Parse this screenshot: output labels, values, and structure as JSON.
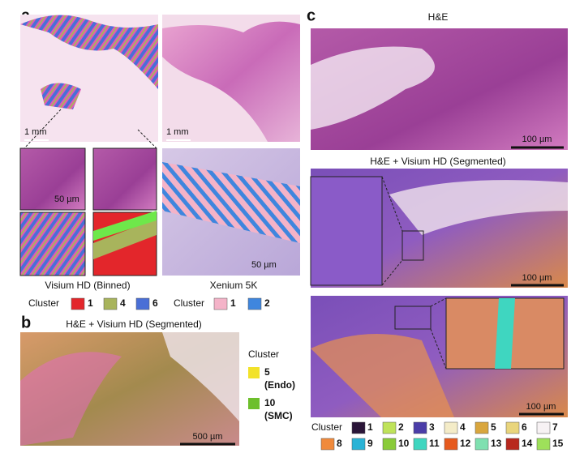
{
  "panel_a": {
    "label": "a",
    "scale_top_left": "1 mm",
    "scale_top_right": "1 mm",
    "scale_visium_inset": "50 µm",
    "scale_xenium": "50 µm",
    "visium_caption": "Visium HD (Binned)",
    "xenium_caption": "Xenium 5K",
    "visium_legend": {
      "title": "Cluster",
      "items": [
        {
          "label": "1",
          "color": "#e3262b"
        },
        {
          "label": "4",
          "color": "#a8b45c"
        },
        {
          "label": "6",
          "color": "#4a6fd6"
        }
      ]
    },
    "xenium_legend": {
      "title": "Cluster",
      "items": [
        {
          "label": "1",
          "color": "#f4b3c8"
        },
        {
          "label": "2",
          "color": "#3f86de"
        }
      ]
    }
  },
  "panel_b": {
    "label": "b",
    "title": "H&E + Visium HD (Segmented)",
    "scale": "500 µm",
    "legend": {
      "title": "Cluster",
      "items": [
        {
          "label": "5",
          "sublabel": "(Endo)",
          "color": "#f2e22a"
        },
        {
          "label": "10",
          "sublabel": "(SMC)",
          "color": "#6dbf2c"
        }
      ]
    }
  },
  "panel_c": {
    "label": "c",
    "title_top": "H&E",
    "scale_top": "100 µm",
    "title_middle": "H&E + Visium HD (Segmented)",
    "scale_middle": "100 µm",
    "scale_bottom": "100 µm",
    "legend": {
      "title": "Cluster",
      "items": [
        {
          "label": "1",
          "color": "#2a1538"
        },
        {
          "label": "2",
          "color": "#bfe35a"
        },
        {
          "label": "3",
          "color": "#4b3da8"
        },
        {
          "label": "4",
          "color": "#f4ecc8"
        },
        {
          "label": "5",
          "color": "#d9a63e"
        },
        {
          "label": "6",
          "color": "#e9d57c"
        },
        {
          "label": "7",
          "color": "#f7f2f4"
        },
        {
          "label": "8",
          "color": "#f08a3c"
        },
        {
          "label": "9",
          "color": "#2ab3d6"
        },
        {
          "label": "10",
          "color": "#8acb3a"
        },
        {
          "label": "11",
          "color": "#3fd6c0"
        },
        {
          "label": "12",
          "color": "#e65a1e"
        },
        {
          "label": "13",
          "color": "#7fe0b0"
        },
        {
          "label": "14",
          "color": "#b8281e"
        },
        {
          "label": "15",
          "color": "#9ee05a"
        }
      ]
    }
  }
}
